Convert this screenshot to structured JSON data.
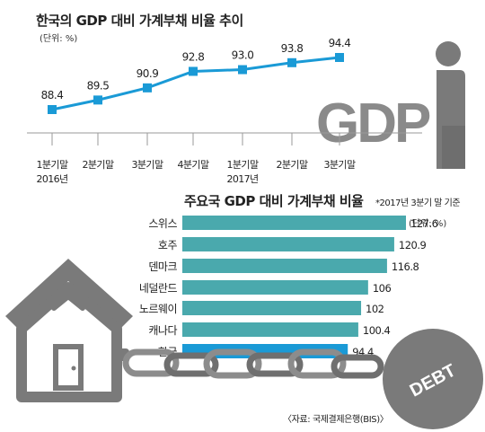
{
  "colors": {
    "line": "#1a9ad6",
    "bar": "#4aa9ad",
    "bar_highlight": "#1a9ad6",
    "illustration": "#7a7a7a",
    "chain": "#8c8c8c"
  },
  "icons": [
    "house-icon",
    "chain-icon",
    "debt-ball-icon",
    "gdp-figure-icon"
  ],
  "decor": {
    "gdp_text": "GDP",
    "debt_text": "DEBT"
  },
  "source": "〈자료: 국제결제은행(BIS)〉",
  "chart_data": [
    {
      "type": "line",
      "title": "한국의 GDP 대비 가계부채 비율 추이",
      "unit": "(단위: %)",
      "categories": [
        [
          "1분기말",
          "2016년"
        ],
        [
          "2분기말",
          ""
        ],
        [
          "3분기말",
          ""
        ],
        [
          "4분기말",
          ""
        ],
        [
          "1분기말",
          "2017년"
        ],
        [
          "2분기말",
          ""
        ],
        [
          "3분기말",
          ""
        ]
      ],
      "values": [
        88.4,
        89.5,
        90.9,
        92.8,
        93.0,
        93.8,
        94.4
      ],
      "value_labels": [
        "88.4",
        "89.5",
        "90.9",
        "92.8",
        "93.0",
        "93.8",
        "94.4"
      ],
      "ylim": [
        86,
        96
      ],
      "grid": false,
      "legend": "none"
    },
    {
      "type": "bar",
      "orientation": "horizontal",
      "title": "주요국 GDP 대비 가계부채 비율",
      "note": "*2017년 3분기 말 기준",
      "unit": "(단위: %)",
      "categories": [
        "스위스",
        "호주",
        "덴마크",
        "네덜란드",
        "노르웨이",
        "캐나다",
        "한국"
      ],
      "values": [
        127.6,
        120.9,
        116.8,
        106,
        102,
        100.4,
        94.4
      ],
      "value_labels": [
        "127.6",
        "120.9",
        "116.8",
        "106",
        "102",
        "100.4",
        "94.4"
      ],
      "highlight": "한국",
      "xlim": [
        0,
        127.6
      ],
      "grid": false,
      "legend": "none"
    }
  ]
}
